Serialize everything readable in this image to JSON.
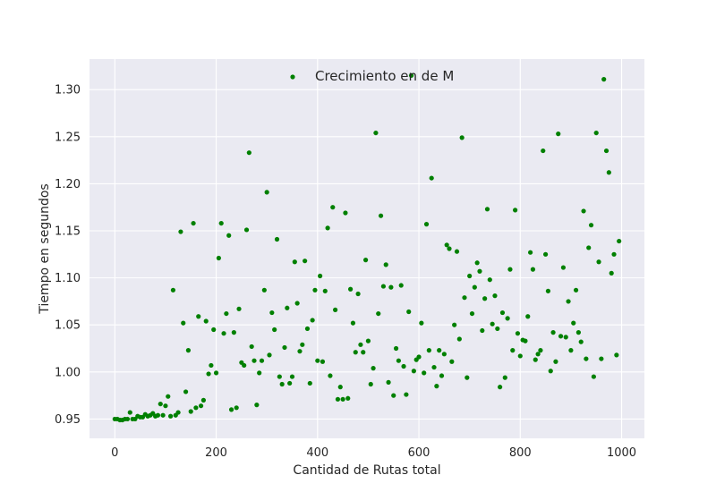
{
  "chart_data": {
    "type": "scatter",
    "title": "",
    "xlabel": "Cantidad de Rutas total",
    "ylabel": "Tiempo en segundos",
    "xlim": [
      -50,
      1045
    ],
    "ylim": [
      0.9295,
      1.3325
    ],
    "x_ticks": [
      0,
      200,
      400,
      600,
      800,
      1000
    ],
    "y_ticks": [
      0.95,
      1.0,
      1.05,
      1.1,
      1.15,
      1.2,
      1.25,
      1.3
    ],
    "x_tick_labels": [
      "0",
      "200",
      "400",
      "600",
      "800",
      "1000"
    ],
    "y_tick_labels": [
      "0.95",
      "1.00",
      "1.05",
      "1.10",
      "1.15",
      "1.20",
      "1.25",
      "1.30"
    ],
    "grid": true,
    "background": "#eaeaf2",
    "grid_color": "#ffffff",
    "point_color": "#008000",
    "legend": {
      "position": "top-center",
      "label": "Crecimiento en de M"
    },
    "series": [
      {
        "name": "Crecimiento en de M",
        "points": [
          [
            0,
            0.95
          ],
          [
            5,
            0.95
          ],
          [
            10,
            0.949
          ],
          [
            15,
            0.949
          ],
          [
            20,
            0.95
          ],
          [
            25,
            0.95
          ],
          [
            30,
            0.957
          ],
          [
            35,
            0.95
          ],
          [
            40,
            0.95
          ],
          [
            45,
            0.953
          ],
          [
            50,
            0.952
          ],
          [
            55,
            0.952
          ],
          [
            60,
            0.955
          ],
          [
            65,
            0.953
          ],
          [
            70,
            0.954
          ],
          [
            75,
            0.956
          ],
          [
            80,
            0.953
          ],
          [
            85,
            0.954
          ],
          [
            90,
            0.966
          ],
          [
            95,
            0.954
          ],
          [
            100,
            0.964
          ],
          [
            105,
            0.974
          ],
          [
            110,
            0.953
          ],
          [
            115,
            1.087
          ],
          [
            120,
            0.954
          ],
          [
            125,
            0.957
          ],
          [
            130,
            1.149
          ],
          [
            135,
            1.052
          ],
          [
            140,
            0.979
          ],
          [
            145,
            1.023
          ],
          [
            150,
            0.958
          ],
          [
            155,
            1.158
          ],
          [
            160,
            0.962
          ],
          [
            165,
            1.059
          ],
          [
            170,
            0.964
          ],
          [
            175,
            0.97
          ],
          [
            180,
            1.054
          ],
          [
            185,
            0.998
          ],
          [
            190,
            1.007
          ],
          [
            195,
            1.045
          ],
          [
            200,
            0.999
          ],
          [
            205,
            1.121
          ],
          [
            210,
            1.158
          ],
          [
            215,
            1.041
          ],
          [
            220,
            1.062
          ],
          [
            225,
            1.145
          ],
          [
            230,
            0.96
          ],
          [
            235,
            1.042
          ],
          [
            240,
            0.962
          ],
          [
            245,
            1.067
          ],
          [
            250,
            1.01
          ],
          [
            255,
            1.007
          ],
          [
            260,
            1.151
          ],
          [
            265,
            1.233
          ],
          [
            270,
            1.027
          ],
          [
            275,
            1.012
          ],
          [
            280,
            0.965
          ],
          [
            285,
            0.999
          ],
          [
            290,
            1.012
          ],
          [
            295,
            1.087
          ],
          [
            300,
            1.191
          ],
          [
            305,
            1.018
          ],
          [
            310,
            1.063
          ],
          [
            315,
            1.045
          ],
          [
            320,
            1.141
          ],
          [
            325,
            0.995
          ],
          [
            330,
            0.987
          ],
          [
            335,
            1.026
          ],
          [
            340,
            1.068
          ],
          [
            345,
            0.988
          ],
          [
            350,
            0.995
          ],
          [
            355,
            1.117
          ],
          [
            360,
            1.073
          ],
          [
            365,
            1.022
          ],
          [
            370,
            1.029
          ],
          [
            375,
            1.118
          ],
          [
            380,
            1.046
          ],
          [
            385,
            0.988
          ],
          [
            390,
            1.055
          ],
          [
            395,
            1.087
          ],
          [
            400,
            1.012
          ],
          [
            405,
            1.102
          ],
          [
            410,
            1.011
          ],
          [
            415,
            1.086
          ],
          [
            420,
            1.153
          ],
          [
            425,
            0.996
          ],
          [
            430,
            1.175
          ],
          [
            435,
            1.066
          ],
          [
            440,
            0.971
          ],
          [
            445,
            0.984
          ],
          [
            450,
            0.971
          ],
          [
            455,
            1.169
          ],
          [
            460,
            0.972
          ],
          [
            465,
            1.088
          ],
          [
            470,
            1.052
          ],
          [
            475,
            1.021
          ],
          [
            480,
            1.083
          ],
          [
            485,
            1.029
          ],
          [
            490,
            1.021
          ],
          [
            495,
            1.119
          ],
          [
            500,
            1.033
          ],
          [
            505,
            0.987
          ],
          [
            510,
            1.004
          ],
          [
            515,
            1.254
          ],
          [
            520,
            1.062
          ],
          [
            525,
            1.166
          ],
          [
            530,
            1.091
          ],
          [
            535,
            1.114
          ],
          [
            540,
            0.989
          ],
          [
            545,
            1.09
          ],
          [
            550,
            0.975
          ],
          [
            555,
            1.025
          ],
          [
            560,
            1.012
          ],
          [
            565,
            1.092
          ],
          [
            570,
            1.006
          ],
          [
            575,
            0.976
          ],
          [
            580,
            1.064
          ],
          [
            585,
            1.315
          ],
          [
            590,
            1.001
          ],
          [
            595,
            1.013
          ],
          [
            600,
            1.016
          ],
          [
            605,
            1.052
          ],
          [
            610,
            0.999
          ],
          [
            615,
            1.157
          ],
          [
            620,
            1.023
          ],
          [
            625,
            1.206
          ],
          [
            630,
            1.005
          ],
          [
            635,
            0.985
          ],
          [
            640,
            1.023
          ],
          [
            645,
            0.996
          ],
          [
            650,
            1.019
          ],
          [
            655,
            1.135
          ],
          [
            660,
            1.131
          ],
          [
            665,
            1.011
          ],
          [
            670,
            1.05
          ],
          [
            675,
            1.128
          ],
          [
            680,
            1.035
          ],
          [
            685,
            1.249
          ],
          [
            690,
            1.079
          ],
          [
            695,
            0.994
          ],
          [
            700,
            1.102
          ],
          [
            705,
            1.062
          ],
          [
            710,
            1.09
          ],
          [
            715,
            1.116
          ],
          [
            720,
            1.107
          ],
          [
            725,
            1.044
          ],
          [
            730,
            1.078
          ],
          [
            735,
            1.173
          ],
          [
            740,
            1.098
          ],
          [
            745,
            1.051
          ],
          [
            750,
            1.081
          ],
          [
            755,
            1.046
          ],
          [
            760,
            0.984
          ],
          [
            765,
            1.063
          ],
          [
            770,
            0.994
          ],
          [
            775,
            1.057
          ],
          [
            780,
            1.109
          ],
          [
            785,
            1.023
          ],
          [
            790,
            1.172
          ],
          [
            795,
            1.041
          ],
          [
            800,
            1.017
          ],
          [
            805,
            1.034
          ],
          [
            810,
            1.033
          ],
          [
            815,
            1.059
          ],
          [
            820,
            1.127
          ],
          [
            825,
            1.109
          ],
          [
            830,
            1.013
          ],
          [
            835,
            1.019
          ],
          [
            840,
            1.023
          ],
          [
            845,
            1.235
          ],
          [
            850,
            1.125
          ],
          [
            855,
            1.086
          ],
          [
            860,
            1.001
          ],
          [
            865,
            1.042
          ],
          [
            870,
            1.011
          ],
          [
            875,
            1.253
          ],
          [
            880,
            1.038
          ],
          [
            885,
            1.111
          ],
          [
            890,
            1.037
          ],
          [
            895,
            1.075
          ],
          [
            900,
            1.023
          ],
          [
            905,
            1.052
          ],
          [
            910,
            1.087
          ],
          [
            915,
            1.042
          ],
          [
            920,
            1.032
          ],
          [
            925,
            1.171
          ],
          [
            930,
            1.014
          ],
          [
            935,
            1.132
          ],
          [
            940,
            1.156
          ],
          [
            945,
            0.995
          ],
          [
            950,
            1.254
          ],
          [
            955,
            1.117
          ],
          [
            960,
            1.014
          ],
          [
            965,
            1.311
          ],
          [
            970,
            1.235
          ],
          [
            975,
            1.212
          ],
          [
            980,
            1.105
          ],
          [
            985,
            1.125
          ],
          [
            990,
            1.018
          ],
          [
            995,
            1.139
          ]
        ]
      }
    ]
  }
}
